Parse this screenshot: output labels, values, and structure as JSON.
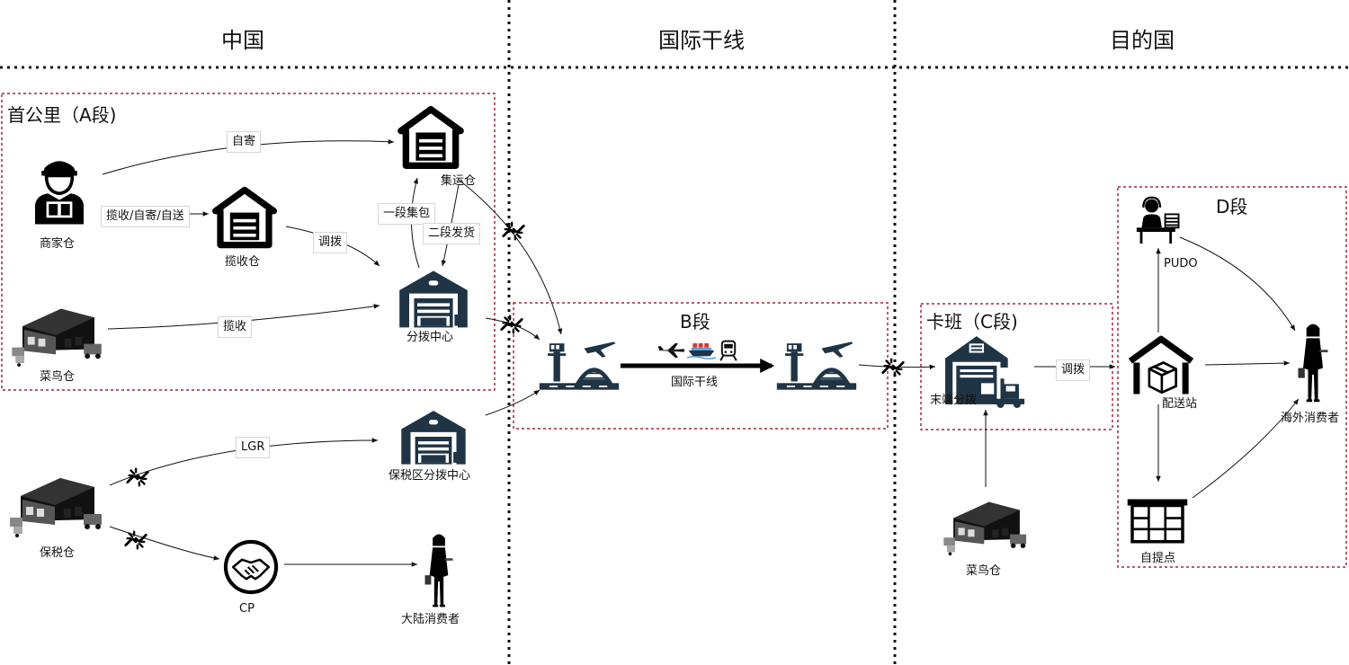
{
  "regions": [
    {
      "label": "中国"
    },
    {
      "label": "国际干线"
    },
    {
      "label": "目的国"
    }
  ],
  "segments": {
    "a": "首公里（A段)",
    "b": "B段",
    "c": "卡班（C段)",
    "d": "D段"
  },
  "nodes": {
    "merchant": "商家仓",
    "pickup_wh": "揽收仓",
    "consol_wh": "集运仓",
    "sort_center": "分拨中心",
    "cainiao_a": "菜鸟仓",
    "bonded_sort": "保税区分拨中心",
    "bonded_wh": "保税仓",
    "cp": "CP",
    "mainland_consumer": "大陆消费者",
    "trunk": "国际干线",
    "last_mile_sort": "末端分拨",
    "cainiao_c": "菜鸟仓",
    "pudo": "PUDO",
    "delivery_station": "配送站",
    "self_pickup": "自提点",
    "overseas_consumer": "海外消费者"
  },
  "edge_labels": {
    "self_send": "自寄",
    "pickup_options": "揽收/自寄/自送",
    "transfer_a": "调拨",
    "first_pack": "一段集包",
    "second_ship": "二段发货",
    "pickup": "揽收",
    "lgr": "LGR",
    "transfer_c": "调拨"
  },
  "colors": {
    "segment_border": "#a3263a",
    "icon_dark": "#1f3445",
    "line": "#111111"
  },
  "icons": [
    "merchant-person-icon",
    "warehouse-house-icon",
    "sorting-center-icon",
    "cainiao-warehouse-icon",
    "handshake-icon",
    "consumer-woman-icon",
    "airport-icon",
    "plane-icon",
    "ship-icon",
    "train-icon",
    "forklift-warehouse-icon",
    "pudo-desk-icon",
    "delivery-box-icon",
    "locker-icon",
    "broken-link-icon"
  ]
}
